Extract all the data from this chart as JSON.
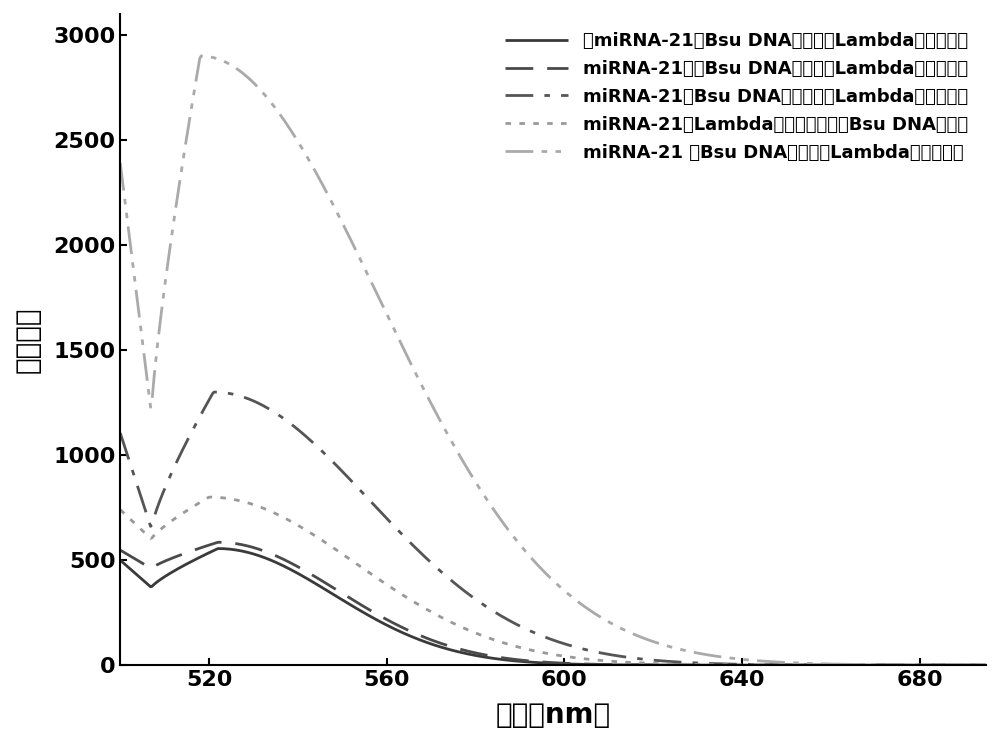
{
  "xlabel": "波长（nm）",
  "ylabel": "荧光强度",
  "xlim": [
    500,
    695
  ],
  "ylim": [
    0,
    3100
  ],
  "xticks": [
    520,
    560,
    600,
    640,
    680
  ],
  "yticks": [
    0,
    500,
    1000,
    1500,
    2000,
    2500,
    3000
  ],
  "legend_entries": [
    "无miRNA-21、Bsu DNA聚合酶和Lambda核酸外切酶",
    "miRNA-21，无Bsu DNA聚合酶和Lambda核酸外切酶",
    "miRNA-21、Bsu DNA聚合酶，无Lambda核酸外切酶",
    "miRNA-21、Lambda核酸外切酶，无Bsu DNA聚合酶",
    "miRNA-21 、Bsu DNA聚合酶和Lambda核酸外切酶"
  ],
  "background_color": "#ffffff",
  "font_size_label": 20,
  "font_size_tick": 16,
  "font_size_legend": 13
}
